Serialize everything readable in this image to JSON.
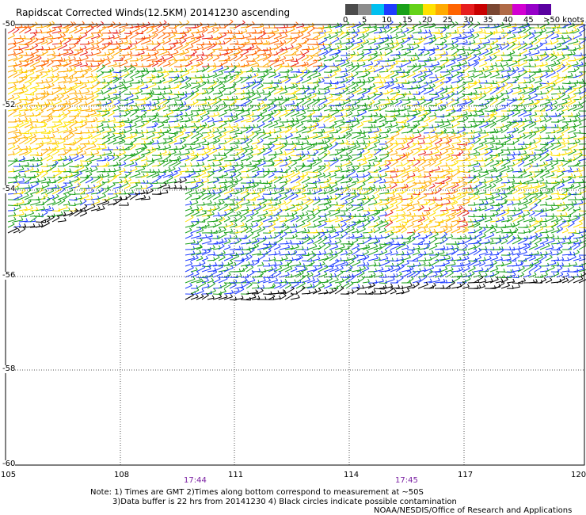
{
  "title": "Rapidscat Corrected Winds(12.5KM) 20141230 ascending",
  "legend": {
    "unit_label": ">50 knots",
    "ticks": [
      "0",
      "5",
      "10",
      "15",
      "20",
      "25",
      "30",
      "35",
      "40",
      "45"
    ],
    "colors": [
      "#4b4b4b",
      "#8c8c8c",
      "#00c0f0",
      "#1e3cff",
      "#19a019",
      "#64d219",
      "#ffe100",
      "#ffaa00",
      "#ff6400",
      "#e61e1e",
      "#c80000",
      "#7a4632",
      "#b06a46",
      "#d200d2",
      "#9600c8",
      "#5a00a0"
    ]
  },
  "map": {
    "lat_labels": [
      "-50",
      "-52",
      "-54",
      "-56",
      "-58",
      "-60"
    ],
    "lon_labels": [
      "105",
      "108",
      "111",
      "114",
      "117",
      "120"
    ],
    "pass_times": [
      "17:44",
      "17:45"
    ]
  },
  "notes": {
    "line1": "Note: 1) Times are GMT 2)Times along bottom correspond to measurement at ~50S",
    "line2": "3)Data buffer is 22 hrs from 20141230 4) Black circles indicate possible contamination",
    "credit": "NOAA/NESDIS/Office of Research and Applications"
  }
}
